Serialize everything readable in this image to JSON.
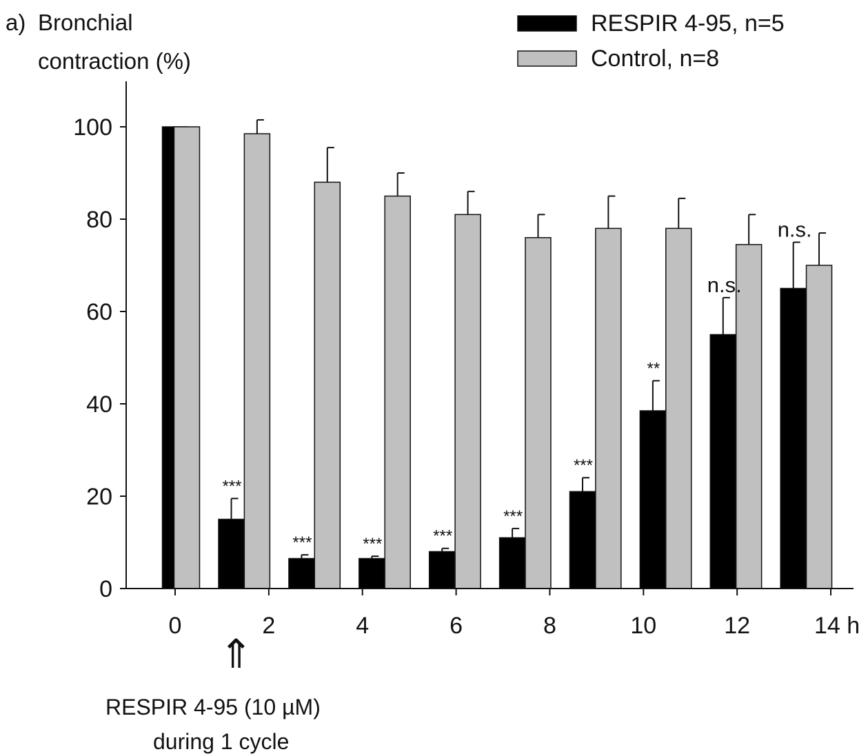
{
  "chart_data": {
    "type": "bar",
    "panel_label": "a)",
    "ylabel_line1": "Bronchial",
    "ylabel_line2": "contraction (%)",
    "ylim": [
      0,
      110
    ],
    "yticks": [
      0,
      20,
      40,
      60,
      80,
      100
    ],
    "x_ticks": [
      0,
      2,
      4,
      6,
      8,
      10,
      12,
      14
    ],
    "x_tick_labels": [
      "0",
      "2",
      "4",
      "6",
      "8",
      "10",
      "12",
      "14 h"
    ],
    "xlim": [
      0,
      14
    ],
    "categories": [
      "0",
      "1",
      "2",
      "3",
      "4",
      "5",
      "6",
      "7",
      "8",
      "9"
    ],
    "series": [
      {
        "name": "RESPIR 4-95, n=5",
        "color": "#000000",
        "x": [
          0.0,
          1.2,
          2.7,
          4.2,
          5.7,
          7.2,
          8.7,
          10.2,
          11.7,
          13.2
        ],
        "values": [
          100,
          15,
          6.5,
          6.5,
          8,
          11,
          21,
          38.5,
          55,
          65
        ],
        "error": [
          0,
          4.5,
          0.8,
          0.5,
          0.7,
          2,
          3,
          6.5,
          8,
          10
        ]
      },
      {
        "name": "Control, n=8",
        "color": "#c0c0c0",
        "x": [
          0.25,
          1.75,
          3.25,
          4.75,
          6.25,
          7.75,
          9.25,
          10.75,
          12.25,
          13.75
        ],
        "values": [
          100,
          98.5,
          88,
          85,
          81,
          76,
          78,
          78,
          74.5,
          70
        ],
        "error": [
          0,
          3,
          7.5,
          5,
          5,
          5,
          7,
          6.5,
          6.5,
          7
        ]
      }
    ],
    "significance": [
      {
        "series": 0,
        "index": 1,
        "text": "***"
      },
      {
        "series": 0,
        "index": 2,
        "text": "***"
      },
      {
        "series": 0,
        "index": 3,
        "text": "***"
      },
      {
        "series": 0,
        "index": 4,
        "text": "***"
      },
      {
        "series": 0,
        "index": 5,
        "text": "***"
      },
      {
        "series": 0,
        "index": 6,
        "text": "***"
      },
      {
        "series": 0,
        "index": 7,
        "text": "**"
      },
      {
        "series": 0,
        "index": 8,
        "text": "n.s."
      },
      {
        "series": 0,
        "index": 9,
        "text": "n.s."
      }
    ],
    "annotation": {
      "arrow": "⇑",
      "at_x": 1.2,
      "line1": "RESPIR 4-95 (10 µM)",
      "line2": "during 1 cycle"
    },
    "legend_position": "top-right",
    "grid": false
  }
}
